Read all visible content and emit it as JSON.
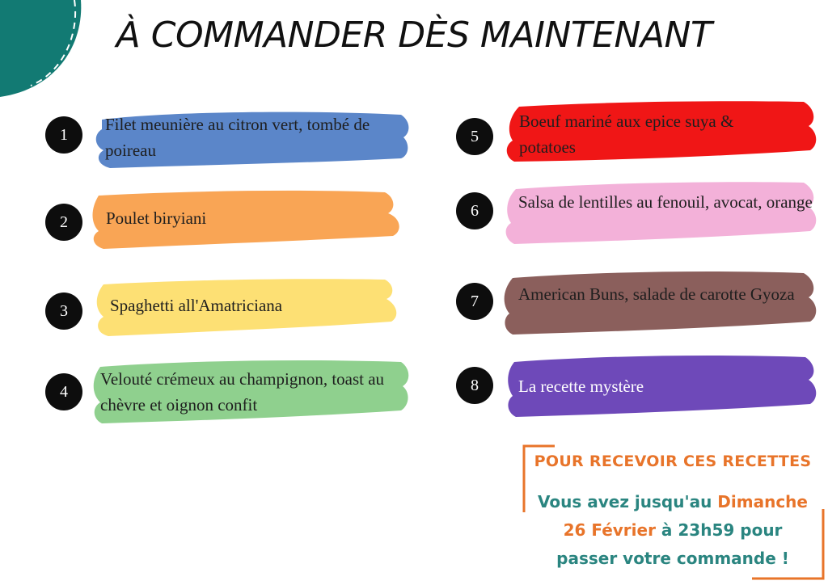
{
  "title": "À COMMANDER DÈS MAINTENANT",
  "colors": {
    "corner": "#127a73",
    "badge": "#0d0d0d",
    "accent_orange": "#e8742a",
    "teal_text": "#2a8580"
  },
  "items": [
    {
      "number": "1",
      "label": "Filet meunière au citron vert, tombé de poireau",
      "color": "#5b86c9"
    },
    {
      "number": "2",
      "label": "Poulet biryiani",
      "color": "#f9a555"
    },
    {
      "number": "3",
      "label": "Spaghetti all'Amatriciana",
      "color": "#fde074"
    },
    {
      "number": "4",
      "label": "Velouté crémeux au champignon, toast au chèvre et oignon confit",
      "color": "#8fd08e"
    },
    {
      "number": "5",
      "label": "Boeuf mariné aux epice suya & potatoes",
      "color": "#f01616"
    },
    {
      "number": "6",
      "label": "Salsa de lentilles au fenouil, avocat, orange",
      "color": "#f3b1d9"
    },
    {
      "number": "7",
      "label": "American Buns, salade de carotte Gyoza",
      "color": "#8b5f5c"
    },
    {
      "number": "8",
      "label": "La recette mystère",
      "color": "#6e49b9"
    }
  ],
  "cta": {
    "title": "POUR RECEVOIR CES RECETTES",
    "line1_prefix": "Vous avez jusqu'au ",
    "line1_accent": "Dimanche",
    "line2_accent": "26 Février",
    "line2_suffix": " à 23h59 pour",
    "line3": "passer votre commande !"
  }
}
